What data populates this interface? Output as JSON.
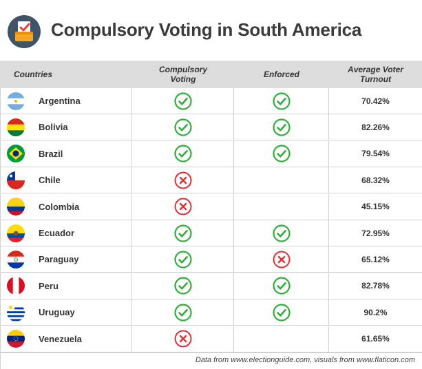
{
  "header": {
    "title": "Compulsory Voting in South America",
    "logo_icon": "ballot-box-check-icon"
  },
  "columns": {
    "countries": "Countries",
    "compulsory": "Compulsory Voting",
    "enforced": "Enforced",
    "turnout": "Average Voter Turnout"
  },
  "colors": {
    "check": "#2fae3a",
    "cross": "#e03030",
    "header_bg": "#dcdcdc"
  },
  "rows": [
    {
      "country": "Argentina",
      "flag_icon": "argentina-flag-icon",
      "compulsory": "yes",
      "enforced": "yes",
      "turnout": "70.42%"
    },
    {
      "country": "Bolivia",
      "flag_icon": "bolivia-flag-icon",
      "compulsory": "yes",
      "enforced": "yes",
      "turnout": "82.26%"
    },
    {
      "country": "Brazil",
      "flag_icon": "brazil-flag-icon",
      "compulsory": "yes",
      "enforced": "yes",
      "turnout": "79.54%"
    },
    {
      "country": "Chile",
      "flag_icon": "chile-flag-icon",
      "compulsory": "no",
      "enforced": "",
      "turnout": "68.32%"
    },
    {
      "country": "Colombia",
      "flag_icon": "colombia-flag-icon",
      "compulsory": "no",
      "enforced": "",
      "turnout": "45.15%"
    },
    {
      "country": "Ecuador",
      "flag_icon": "ecuador-flag-icon",
      "compulsory": "yes",
      "enforced": "yes",
      "turnout": "72.95%"
    },
    {
      "country": "Paraguay",
      "flag_icon": "paraguay-flag-icon",
      "compulsory": "yes",
      "enforced": "no",
      "turnout": "65.12%"
    },
    {
      "country": "Peru",
      "flag_icon": "peru-flag-icon",
      "compulsory": "yes",
      "enforced": "yes",
      "turnout": "82.78%"
    },
    {
      "country": "Uruguay",
      "flag_icon": "uruguay-flag-icon",
      "compulsory": "yes",
      "enforced": "yes",
      "turnout": "90.2%"
    },
    {
      "country": "Venezuela",
      "flag_icon": "venezuela-flag-icon",
      "compulsory": "no",
      "enforced": "",
      "turnout": "61.65%"
    }
  ],
  "footer": {
    "source": "Data from www.electionguide.com, visuals from www.flaticon.com"
  }
}
